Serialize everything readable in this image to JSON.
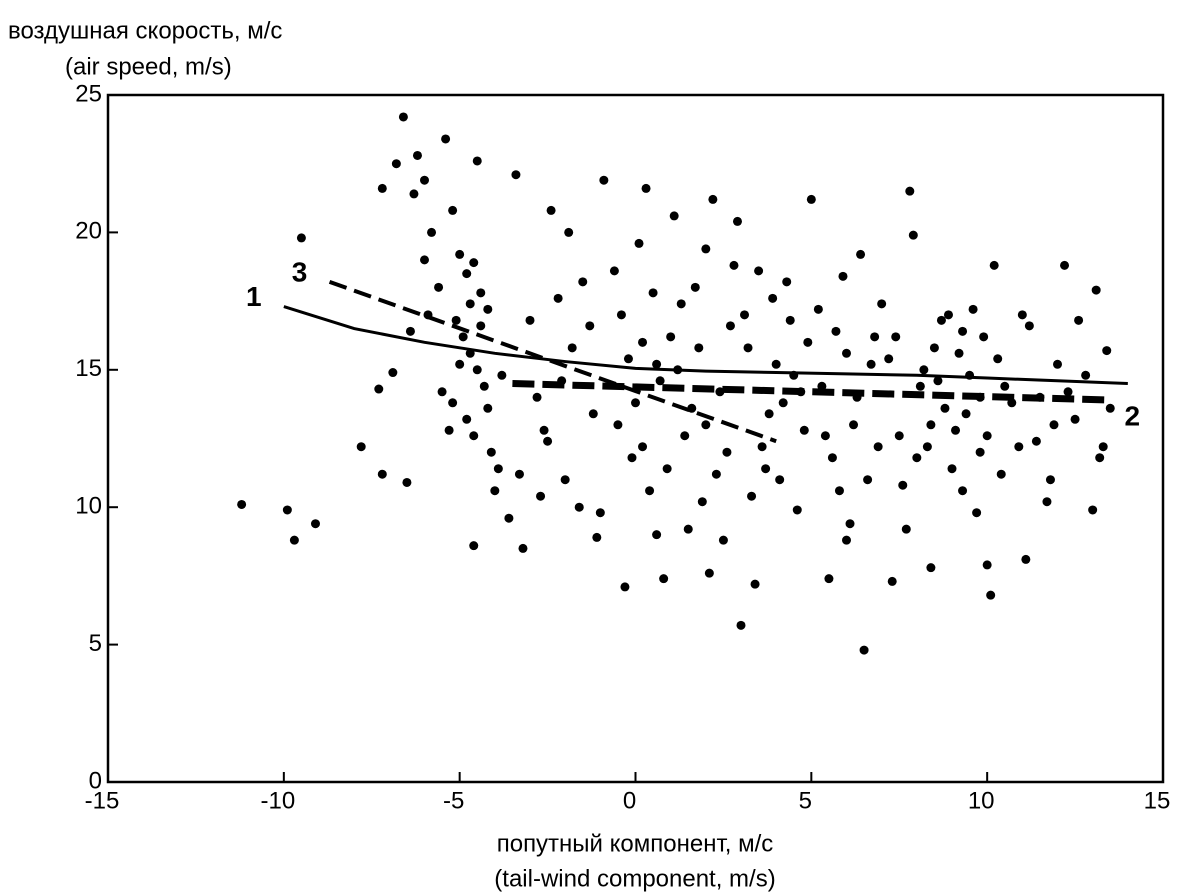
{
  "chart_data": {
    "type": "scatter",
    "y_label": [
      "воздушная скорость, м/с",
      "(air speed, m/s)"
    ],
    "x_label": [
      "попутный компонент, м/с",
      "(tail-wind component, m/s)"
    ],
    "xlim": [
      -15,
      15
    ],
    "xticks": [
      -15,
      -10,
      -5,
      0,
      5,
      10,
      15
    ],
    "ylim": [
      0,
      25
    ],
    "yticks": [
      0,
      5,
      10,
      15,
      20,
      25
    ],
    "color": "#000000",
    "x": [
      -11.2,
      -9.9,
      -9.7,
      -9.1,
      -9.5,
      -7.8,
      -7.2,
      -6.5,
      -7.3,
      -6.9,
      -6.6,
      -5.4,
      -6.2,
      -6.0,
      -7.2,
      -6.8,
      -6.3,
      -5.8,
      -5.2,
      -4.5,
      -5.0,
      -4.8,
      -4.6,
      -4.4,
      -4.2,
      -5.1,
      -4.9,
      -4.7,
      -4.5,
      -4.3,
      -5.2,
      -4.8,
      -4.6,
      -4.1,
      -3.9,
      -5.0,
      -4.4,
      -4.7,
      -4.2,
      -3.8,
      -6.0,
      -5.6,
      -5.9,
      -6.4,
      -5.5,
      -5.3,
      -4.0,
      -3.6,
      -4.6,
      -3.3,
      -3.0,
      -2.8,
      -2.5,
      -2.2,
      -2.0,
      -1.8,
      -1.5,
      -1.2,
      -1.0,
      -2.7,
      -3.4,
      -3.2,
      -2.4,
      -1.9,
      -1.6,
      -1.3,
      -0.9,
      -2.1,
      -2.6,
      -1.1,
      -0.6,
      -0.4,
      -0.2,
      0.0,
      0.2,
      0.4,
      0.6,
      0.8,
      1.0,
      -0.3,
      0.1,
      0.3,
      0.5,
      0.7,
      0.9,
      -0.5,
      -0.1,
      0.2,
      0.6,
      1.1,
      1.3,
      1.6,
      1.9,
      2.2,
      2.5,
      2.8,
      1.4,
      1.8,
      2.1,
      2.6,
      1.5,
      2.0,
      2.4,
      2.7,
      3.0,
      1.2,
      2.3,
      2.9,
      1.7,
      2.0,
      3.2,
      3.5,
      3.8,
      4.1,
      4.4,
      4.7,
      5.0,
      3.4,
      3.9,
      4.6,
      3.6,
      4.0,
      4.3,
      4.8,
      3.3,
      4.2,
      4.9,
      3.7,
      4.5,
      3.1,
      5.3,
      5.6,
      5.9,
      6.2,
      6.5,
      6.8,
      5.5,
      6.0,
      6.4,
      6.9,
      5.2,
      5.8,
      6.3,
      6.7,
      5.4,
      6.1,
      6.6,
      7.0,
      5.7,
      6.0,
      7.2,
      7.5,
      7.8,
      8.1,
      8.4,
      8.7,
      7.3,
      7.7,
      8.0,
      8.5,
      7.9,
      8.3,
      8.6,
      8.9,
      7.6,
      8.2,
      8.8,
      7.4,
      8.4,
      9.0,
      9.2,
      9.4,
      9.6,
      9.8,
      10.0,
      10.2,
      10.4,
      9.3,
      9.7,
      10.1,
      9.1,
      9.5,
      9.9,
      10.3,
      10.7,
      11.0,
      9.3,
      9.8,
      10.5,
      10.9,
      11.2,
      11.5,
      11.8,
      12.2,
      12.5,
      12.8,
      13.1,
      13.4,
      13.3,
      11.1,
      11.4,
      12.0,
      12.6,
      13.0,
      13.5,
      11.7,
      12.3,
      13.2,
      10.0,
      11.9
    ],
    "values": [
      10.1,
      9.9,
      8.8,
      9.4,
      19.8,
      12.2,
      11.2,
      10.9,
      14.3,
      14.9,
      24.2,
      23.4,
      22.8,
      21.9,
      21.6,
      22.5,
      21.4,
      20.0,
      20.8,
      22.6,
      19.2,
      18.5,
      18.9,
      17.8,
      17.2,
      16.8,
      16.2,
      15.6,
      15.0,
      14.4,
      13.8,
      13.2,
      12.6,
      12.0,
      11.4,
      15.2,
      16.6,
      17.4,
      13.6,
      14.8,
      19.0,
      18.0,
      17.0,
      16.4,
      14.2,
      12.8,
      10.6,
      9.6,
      8.6,
      11.2,
      16.8,
      14.0,
      12.4,
      17.6,
      11.0,
      15.8,
      18.2,
      13.4,
      9.8,
      10.4,
      22.1,
      8.5,
      20.8,
      20.0,
      10.0,
      16.6,
      21.9,
      14.6,
      12.8,
      8.9,
      18.6,
      17.0,
      15.4,
      13.8,
      12.2,
      10.6,
      9.0,
      7.4,
      16.2,
      7.1,
      19.6,
      21.6,
      17.8,
      14.6,
      11.4,
      13.0,
      11.8,
      16.0,
      15.2,
      20.6,
      17.4,
      13.6,
      10.2,
      21.2,
      8.8,
      18.8,
      12.6,
      15.8,
      7.6,
      12.0,
      9.2,
      19.4,
      14.2,
      16.6,
      5.7,
      15.0,
      11.2,
      20.4,
      18.0,
      13.0,
      15.8,
      18.6,
      13.4,
      11.0,
      16.8,
      14.2,
      21.2,
      7.2,
      17.6,
      9.9,
      12.2,
      15.2,
      18.2,
      12.8,
      10.4,
      13.8,
      16.0,
      11.4,
      14.8,
      17.0,
      14.4,
      11.8,
      18.4,
      13.0,
      4.8,
      16.2,
      7.4,
      15.6,
      19.2,
      12.2,
      17.2,
      10.6,
      14.0,
      15.2,
      12.6,
      9.4,
      11.0,
      17.4,
      16.4,
      8.8,
      15.4,
      12.6,
      21.5,
      14.4,
      13.0,
      16.8,
      7.3,
      9.2,
      11.8,
      15.8,
      19.9,
      12.2,
      14.6,
      17.0,
      10.8,
      15.0,
      13.6,
      16.2,
      7.8,
      11.4,
      15.6,
      13.4,
      17.2,
      14.0,
      12.6,
      18.8,
      11.2,
      16.4,
      9.8,
      6.8,
      12.8,
      14.8,
      16.2,
      15.4,
      13.8,
      17.0,
      10.6,
      12.0,
      14.4,
      12.2,
      16.6,
      14.0,
      11.0,
      18.8,
      13.2,
      14.8,
      17.9,
      15.7,
      12.2,
      8.1,
      12.4,
      15.2,
      16.8,
      9.9,
      13.6,
      10.2,
      14.2,
      11.8,
      7.9,
      13.0
    ],
    "lines": [
      {
        "name": "1",
        "style": "solid",
        "color": "#000000",
        "x": [
          -10,
          -8,
          -6,
          -4,
          -2,
          0,
          2,
          4,
          6,
          8,
          10,
          12,
          14
        ],
        "values": [
          17.3,
          16.5,
          16.0,
          15.6,
          15.3,
          15.05,
          14.95,
          14.9,
          14.85,
          14.8,
          14.7,
          14.6,
          14.5
        ]
      },
      {
        "name": "2",
        "style": "thick-dash",
        "color": "#000000",
        "x": [
          -3.5,
          13.5
        ],
        "values": [
          14.5,
          13.9
        ]
      },
      {
        "name": "3",
        "style": "dash",
        "color": "#000000",
        "x": [
          -8.7,
          4
        ],
        "values": [
          18.2,
          12.4
        ]
      }
    ]
  }
}
